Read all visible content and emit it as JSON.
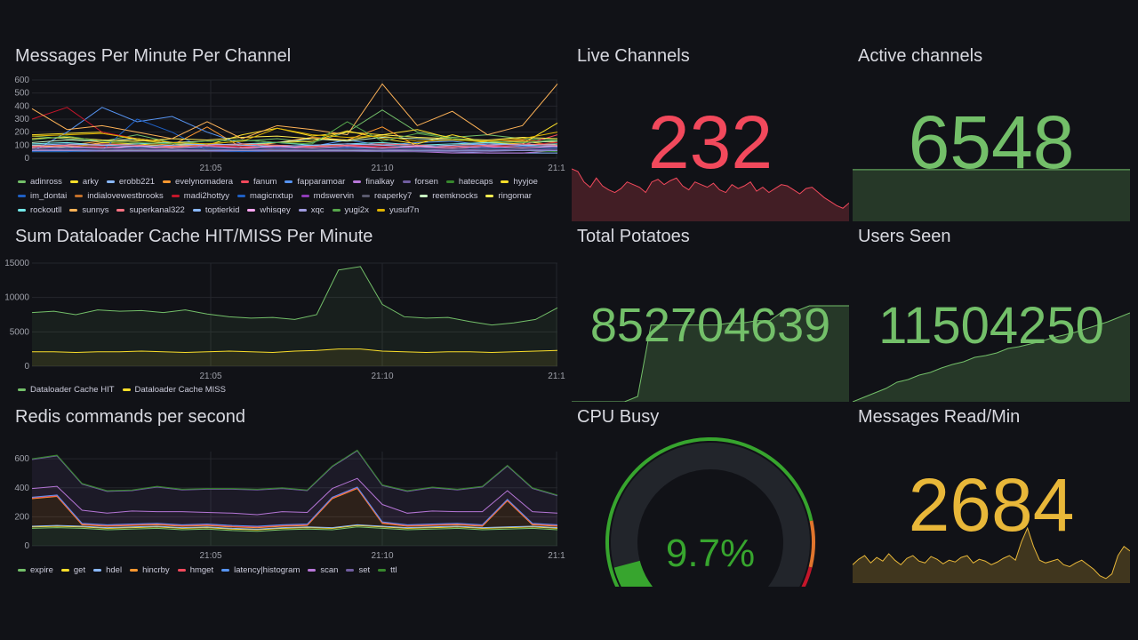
{
  "panels": {
    "messages": {
      "title": "Messages Per Minute Per Channel"
    },
    "cache": {
      "title": "Sum Dataloader Cache HIT/MISS Per Minute"
    },
    "redis": {
      "title": "Redis commands per second"
    },
    "live": {
      "title": "Live Channels",
      "value": "232",
      "color": "#f2495c",
      "spark": [
        40,
        38,
        30,
        26,
        33,
        27,
        24,
        22,
        25,
        30,
        28,
        26,
        22,
        30,
        32,
        28,
        31,
        33,
        27,
        24,
        30,
        28,
        26,
        29,
        24,
        22,
        28,
        25,
        27,
        30,
        23,
        26,
        22,
        25,
        28,
        27,
        24,
        21,
        25,
        26,
        22,
        18,
        15,
        12,
        10,
        14
      ]
    },
    "active": {
      "title": "Active channels",
      "value": "6548",
      "color": "#73bf69",
      "spark": [
        30,
        30,
        30,
        30,
        30,
        30,
        30,
        30,
        30,
        30,
        30
      ]
    },
    "potatoes": {
      "title": "Total Potatoes",
      "value": "852704639",
      "color": "#73bf69",
      "spark": [
        0,
        0,
        0,
        0,
        0,
        0.05,
        0.72,
        0.72,
        0.72,
        0.72,
        0.72,
        0.72,
        0.74,
        0.74,
        0.76,
        0.76,
        0.85,
        0.85,
        0.9,
        0.9,
        0.9,
        0.9
      ]
    },
    "users": {
      "title": "Users Seen",
      "value": "11504250",
      "color": "#73bf69",
      "spark": [
        0,
        0.05,
        0.1,
        0.15,
        0.22,
        0.25,
        0.3,
        0.33,
        0.38,
        0.42,
        0.45,
        0.5,
        0.52,
        0.55,
        0.6,
        0.62,
        0.65,
        0.68,
        0.72,
        0.75,
        0.78,
        0.82,
        0.86,
        0.9,
        0.95,
        1
      ]
    },
    "cpu": {
      "title": "CPU Busy",
      "value": "9.7%",
      "percent": 9.7,
      "color": "#37a52e"
    },
    "msgread": {
      "title": "Messages Read/Min",
      "value": "2684",
      "color": "#e8b739",
      "spark": [
        20,
        26,
        30,
        22,
        28,
        24,
        32,
        25,
        20,
        27,
        30,
        24,
        22,
        29,
        26,
        21,
        25,
        23,
        28,
        30,
        22,
        26,
        24,
        20,
        23,
        27,
        30,
        25,
        45,
        60,
        40,
        25,
        22,
        24,
        26,
        20,
        18,
        22,
        25,
        20,
        15,
        8,
        5,
        10,
        30,
        40,
        35
      ]
    }
  },
  "chart_data": [
    {
      "type": "line",
      "title": "Messages Per Minute Per Channel",
      "ylim": [
        0,
        600
      ],
      "yticks": [
        0,
        100,
        200,
        300,
        400,
        500,
        600
      ],
      "xticks": [
        "21:05",
        "21:10",
        "21:1"
      ],
      "series": [
        {
          "name": "adinross",
          "color": "#73bf69",
          "values": [
            170,
            150,
            130,
            180,
            120,
            110,
            130,
            150,
            120,
            200,
            370,
            200,
            160,
            180,
            150,
            140
          ]
        },
        {
          "name": "arky",
          "color": "#fade2a",
          "values": [
            180,
            190,
            200,
            140,
            110,
            100,
            180,
            230,
            170,
            200,
            180,
            220,
            150,
            120,
            110,
            270
          ]
        },
        {
          "name": "erobb221",
          "color": "#8ab8ff",
          "values": [
            60,
            60,
            60,
            60,
            70,
            60,
            60,
            60,
            60,
            60,
            50,
            50,
            50,
            40,
            40,
            40
          ]
        },
        {
          "name": "evelynomadera",
          "color": "#ff9830",
          "values": [
            90,
            100,
            130,
            120,
            100,
            240,
            80,
            120,
            160,
            140,
            240,
            90,
            100,
            120,
            140,
            120
          ]
        },
        {
          "name": "fanum",
          "color": "#f2495c",
          "values": [
            60,
            80,
            90,
            70,
            90,
            100,
            80,
            70,
            90,
            100,
            80,
            90,
            70,
            80,
            100,
            180
          ]
        },
        {
          "name": "fapparamoar",
          "color": "#5794f2",
          "values": [
            50,
            200,
            390,
            280,
            320,
            200,
            110,
            80,
            90,
            140,
            100,
            120,
            130,
            100,
            90,
            100
          ]
        },
        {
          "name": "finalkay",
          "color": "#b877d9",
          "values": [
            60,
            60,
            60,
            60,
            60,
            60,
            60,
            60,
            60,
            60,
            60,
            50,
            40,
            40,
            40,
            60
          ]
        },
        {
          "name": "forsen",
          "color": "#705da0",
          "values": [
            50,
            50,
            50,
            50,
            50,
            50,
            50,
            50,
            50,
            50,
            50,
            50,
            50,
            50,
            60,
            80
          ]
        },
        {
          "name": "hatecaps",
          "color": "#37872d",
          "values": [
            50,
            50,
            60,
            60,
            60,
            60,
            60,
            60,
            60,
            60,
            60,
            60,
            60,
            60,
            60,
            50
          ]
        },
        {
          "name": "hyyjoe",
          "color": "#fade2a",
          "values": [
            100,
            80,
            120,
            110,
            90,
            110,
            100,
            120,
            130,
            210,
            150,
            110,
            180,
            120,
            130,
            100
          ]
        },
        {
          "name": "im_dontai",
          "color": "#1f60c4",
          "values": [
            50,
            50,
            60,
            300,
            200,
            60,
            50,
            60,
            60,
            80,
            70,
            60,
            60,
            60,
            60,
            60
          ]
        },
        {
          "name": "indialovewestbrooks",
          "color": "#c4702a",
          "values": [
            80,
            90,
            100,
            90,
            80,
            110,
            90,
            100,
            90,
            110,
            100,
            90,
            80,
            90,
            100,
            90
          ]
        },
        {
          "name": "madi2hottyy",
          "color": "#c4162a",
          "values": [
            300,
            390,
            200,
            150,
            120,
            100,
            90,
            80,
            90,
            100,
            90,
            80,
            80,
            90,
            100,
            120
          ]
        },
        {
          "name": "magicnxtup",
          "color": "#1f60c4",
          "values": [
            70,
            80,
            70,
            80,
            70,
            80,
            70,
            80,
            70,
            80,
            70,
            80,
            70,
            80,
            70,
            80
          ]
        },
        {
          "name": "mdswervin",
          "color": "#8f3bb8",
          "values": [
            60,
            70,
            60,
            70,
            60,
            70,
            60,
            70,
            60,
            70,
            60,
            70,
            60,
            70,
            60,
            70
          ]
        },
        {
          "name": "reaperky7",
          "color": "#5a5a6e",
          "values": [
            70,
            70,
            70,
            70,
            70,
            70,
            70,
            70,
            70,
            70,
            70,
            70,
            70,
            70,
            70,
            70
          ]
        },
        {
          "name": "reemknocks",
          "color": "#c8f2c2",
          "values": [
            120,
            140,
            130,
            150,
            120,
            130,
            140,
            120,
            150,
            130,
            160,
            150,
            140,
            130,
            120,
            130
          ]
        },
        {
          "name": "ringomar",
          "color": "#ffee52",
          "values": [
            150,
            160,
            140,
            130,
            150,
            140,
            160,
            170,
            150,
            140,
            180,
            160,
            150,
            140,
            160,
            150
          ]
        },
        {
          "name": "rockoutll",
          "color": "#73e8e8",
          "values": [
            110,
            120,
            100,
            110,
            120,
            100,
            110,
            120,
            100,
            110,
            120,
            100,
            110,
            120,
            100,
            110
          ]
        },
        {
          "name": "sunnys",
          "color": "#ffb357",
          "values": [
            380,
            220,
            250,
            200,
            150,
            280,
            150,
            250,
            220,
            180,
            570,
            250,
            360,
            180,
            250,
            570
          ]
        },
        {
          "name": "superkanal322",
          "color": "#ff7383",
          "values": [
            90,
            100,
            110,
            100,
            90,
            100,
            110,
            100,
            90,
            100,
            110,
            100,
            90,
            100,
            110,
            100
          ]
        },
        {
          "name": "toptierkid",
          "color": "#8ab8ff",
          "values": [
            100,
            110,
            100,
            90,
            100,
            110,
            100,
            90,
            100,
            110,
            100,
            90,
            100,
            110,
            100,
            90
          ]
        },
        {
          "name": "whisqey",
          "color": "#ffa6f2",
          "values": [
            80,
            90,
            80,
            90,
            80,
            90,
            80,
            90,
            80,
            90,
            80,
            90,
            80,
            90,
            80,
            90
          ]
        },
        {
          "name": "xqc",
          "color": "#a09be0",
          "values": [
            60,
            60,
            60,
            60,
            60,
            60,
            60,
            60,
            60,
            60,
            60,
            60,
            60,
            60,
            60,
            60
          ]
        },
        {
          "name": "yugi2x",
          "color": "#56a64b",
          "values": [
            140,
            170,
            130,
            120,
            110,
            130,
            140,
            120,
            110,
            280,
            130,
            190,
            150,
            130,
            120,
            140
          ]
        },
        {
          "name": "yusuf7n",
          "color": "#e0b400",
          "values": [
            170,
            180,
            190,
            150,
            120,
            110,
            130,
            230,
            180,
            160,
            170,
            130,
            140,
            130,
            150,
            200
          ]
        }
      ]
    },
    {
      "type": "area",
      "title": "Sum Dataloader Cache HIT/MISS Per Minute",
      "ylim": [
        0,
        15000
      ],
      "yticks": [
        0,
        5000,
        10000,
        15000
      ],
      "xticks": [
        "21:05",
        "21:10",
        "21:1"
      ],
      "series": [
        {
          "name": "Dataloader Cache HIT",
          "color": "#73bf69",
          "values": [
            7800,
            8000,
            7500,
            8200,
            8000,
            8100,
            7800,
            8200,
            7600,
            7200,
            7000,
            7100,
            6800,
            7500,
            14000,
            14500,
            9000,
            7200,
            7000,
            7100,
            6500,
            6000,
            6300,
            6800,
            8500
          ]
        },
        {
          "name": "Dataloader Cache MISS",
          "color": "#fade2a",
          "values": [
            2100,
            2100,
            2000,
            2100,
            2100,
            2200,
            2100,
            2000,
            2100,
            2200,
            2100,
            2000,
            2200,
            2300,
            2500,
            2500,
            2200,
            2100,
            2000,
            2100,
            2100,
            2000,
            2100,
            2200,
            2300
          ]
        }
      ]
    },
    {
      "type": "stacked-area",
      "title": "Redis commands per second",
      "ylim": [
        0,
        650
      ],
      "yticks": [
        0,
        200,
        400,
        600
      ],
      "xticks": [
        "21:05",
        "21:10",
        "21:1"
      ],
      "series": [
        {
          "name": "expire",
          "color": "#73bf69",
          "values": [
            120,
            125,
            120,
            110,
            115,
            120,
            110,
            115,
            105,
            100,
            110,
            115,
            110,
            130,
            120,
            110,
            115,
            120,
            110,
            115,
            120,
            110
          ]
        },
        {
          "name": "get",
          "color": "#fade2a",
          "values": [
            10,
            10,
            10,
            10,
            10,
            10,
            10,
            10,
            10,
            10,
            10,
            10,
            10,
            10,
            10,
            10,
            10,
            10,
            10,
            10,
            10,
            10
          ]
        },
        {
          "name": "hdel",
          "color": "#8ab8ff",
          "values": [
            5,
            5,
            5,
            5,
            5,
            5,
            5,
            5,
            5,
            5,
            5,
            5,
            5,
            5,
            5,
            5,
            5,
            5,
            5,
            5,
            5,
            5
          ]
        },
        {
          "name": "hincrby",
          "color": "#ff9830",
          "values": [
            190,
            200,
            10,
            10,
            10,
            10,
            10,
            10,
            10,
            10,
            10,
            10,
            200,
            250,
            20,
            10,
            10,
            10,
            10,
            180,
            10,
            10
          ]
        },
        {
          "name": "hmget",
          "color": "#f2495c",
          "values": [
            5,
            5,
            5,
            5,
            5,
            5,
            5,
            5,
            5,
            5,
            5,
            5,
            5,
            5,
            5,
            5,
            5,
            5,
            5,
            5,
            5,
            5
          ]
        },
        {
          "name": "latency|histogram",
          "color": "#5794f2",
          "values": [
            5,
            5,
            5,
            5,
            5,
            5,
            5,
            5,
            5,
            5,
            5,
            5,
            5,
            5,
            5,
            5,
            5,
            5,
            5,
            5,
            5,
            5
          ]
        },
        {
          "name": "scan",
          "color": "#b877d9",
          "values": [
            60,
            60,
            90,
            80,
            90,
            80,
            90,
            80,
            85,
            80,
            90,
            80,
            60,
            60,
            120,
            80,
            90,
            80,
            90,
            60,
            80,
            80
          ]
        },
        {
          "name": "set",
          "color": "#705da0",
          "values": [
            200,
            210,
            180,
            150,
            140,
            170,
            150,
            160,
            165,
            170,
            160,
            150,
            150,
            190,
            130,
            150,
            160,
            150,
            170,
            170,
            160,
            120
          ]
        },
        {
          "name": "ttl",
          "color": "#37872d",
          "values": [
            5,
            5,
            5,
            5,
            5,
            5,
            5,
            5,
            5,
            5,
            5,
            5,
            5,
            5,
            5,
            5,
            5,
            5,
            5,
            5,
            5,
            5
          ]
        }
      ]
    }
  ]
}
